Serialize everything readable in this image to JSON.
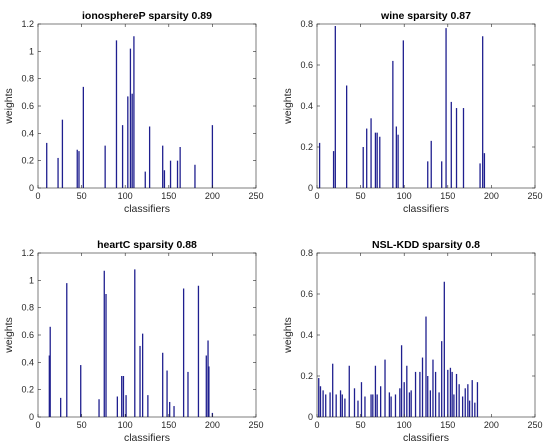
{
  "colors": {
    "stem": "#1f1f8f",
    "axis": "#262626",
    "background": "#ffffff"
  },
  "chart_data": [
    {
      "type": "bar",
      "title": "ionosphereP sparsity 0.89",
      "xlabel": "classifiers",
      "ylabel": "weights",
      "xlim": [
        0,
        250
      ],
      "ylim": [
        0,
        1.2
      ],
      "xticks": [
        0,
        50,
        100,
        150,
        200,
        250
      ],
      "yticks": [
        0,
        0.2,
        0.4,
        0.6,
        0.8,
        1,
        1.2
      ],
      "grid": false,
      "x": [
        10,
        23,
        28,
        45,
        47,
        52,
        77,
        90,
        97,
        103,
        106,
        108,
        110,
        123,
        128,
        143,
        145,
        152,
        160,
        163,
        180,
        200
      ],
      "values": [
        0.33,
        0.22,
        0.5,
        0.28,
        0.27,
        0.74,
        0.31,
        1.08,
        0.46,
        0.67,
        1.02,
        0.69,
        1.11,
        0.12,
        0.45,
        0.31,
        0.13,
        0.2,
        0.2,
        0.3,
        0.17,
        0.46
      ]
    },
    {
      "type": "bar",
      "title": "wine sparsity 0.87",
      "xlabel": "classifiers",
      "ylabel": "weights",
      "xlim": [
        0,
        250
      ],
      "ylim": [
        0,
        0.8
      ],
      "xticks": [
        0,
        50,
        100,
        150,
        200,
        250
      ],
      "yticks": [
        0,
        0.2,
        0.4,
        0.6,
        0.8
      ],
      "grid": false,
      "x": [
        3,
        19,
        21,
        34,
        53,
        57,
        62,
        67,
        69,
        72,
        87,
        91,
        93,
        99,
        127,
        131,
        143,
        148,
        154,
        160,
        168,
        187,
        190,
        192
      ],
      "values": [
        0.22,
        0.18,
        0.79,
        0.5,
        0.2,
        0.29,
        0.34,
        0.27,
        0.27,
        0.25,
        0.62,
        0.3,
        0.26,
        0.72,
        0.13,
        0.23,
        0.13,
        0.78,
        0.42,
        0.39,
        0.39,
        0.12,
        0.74,
        0.17
      ]
    },
    {
      "type": "bar",
      "title": "heartC sparsity 0.88",
      "xlabel": "classifiers",
      "ylabel": "weights",
      "xlim": [
        0,
        250
      ],
      "ylim": [
        0,
        1.2
      ],
      "xticks": [
        0,
        50,
        100,
        150,
        200,
        250
      ],
      "yticks": [
        0,
        0.2,
        0.4,
        0.6,
        0.8,
        1,
        1.2
      ],
      "grid": false,
      "x": [
        13,
        14,
        26,
        33,
        49,
        70,
        76,
        78,
        91,
        96,
        98,
        101,
        111,
        117,
        120,
        126,
        143,
        148,
        151,
        156,
        167,
        172,
        184,
        193,
        195,
        196,
        200
      ],
      "values": [
        0.45,
        0.66,
        0.14,
        0.98,
        0.38,
        0.13,
        1.07,
        0.9,
        0.15,
        0.3,
        0.3,
        0.16,
        1.08,
        0.52,
        0.61,
        0.16,
        0.47,
        0.34,
        0.11,
        0.08,
        0.94,
        0.33,
        0.96,
        0.45,
        0.56,
        0.37,
        0.03
      ]
    },
    {
      "type": "bar",
      "title": "NSL-KDD sparsity 0.8",
      "xlabel": "classifiers",
      "ylabel": "weights",
      "xlim": [
        0,
        250
      ],
      "ylim": [
        0,
        0.8
      ],
      "xticks": [
        0,
        50,
        100,
        150,
        200,
        250
      ],
      "yticks": [
        0,
        0.2,
        0.4,
        0.6,
        0.8
      ],
      "grid": false,
      "x": [
        2,
        4,
        7,
        10,
        15,
        18,
        22,
        27,
        29,
        32,
        37,
        43,
        47,
        51,
        55,
        62,
        64,
        67,
        69,
        73,
        78,
        83,
        85,
        90,
        95,
        97,
        100,
        103,
        106,
        108,
        113,
        118,
        121,
        125,
        127,
        130,
        133,
        136,
        140,
        143,
        146,
        150,
        153,
        155,
        157,
        160,
        163,
        167,
        170,
        173,
        175,
        178,
        181,
        184
      ],
      "values": [
        0.19,
        0.15,
        0.13,
        0.11,
        0.12,
        0.26,
        0.11,
        0.13,
        0.11,
        0.09,
        0.25,
        0.14,
        0.08,
        0.17,
        0.1,
        0.11,
        0.11,
        0.25,
        0.11,
        0.15,
        0.28,
        0.12,
        0.1,
        0.11,
        0.14,
        0.35,
        0.17,
        0.25,
        0.12,
        0.13,
        0.22,
        0.22,
        0.29,
        0.49,
        0.2,
        0.13,
        0.28,
        0.22,
        0.12,
        0.37,
        0.66,
        0.23,
        0.24,
        0.22,
        0.11,
        0.21,
        0.16,
        0.1,
        0.14,
        0.16,
        0.08,
        0.18,
        0.07,
        0.17
      ]
    }
  ]
}
